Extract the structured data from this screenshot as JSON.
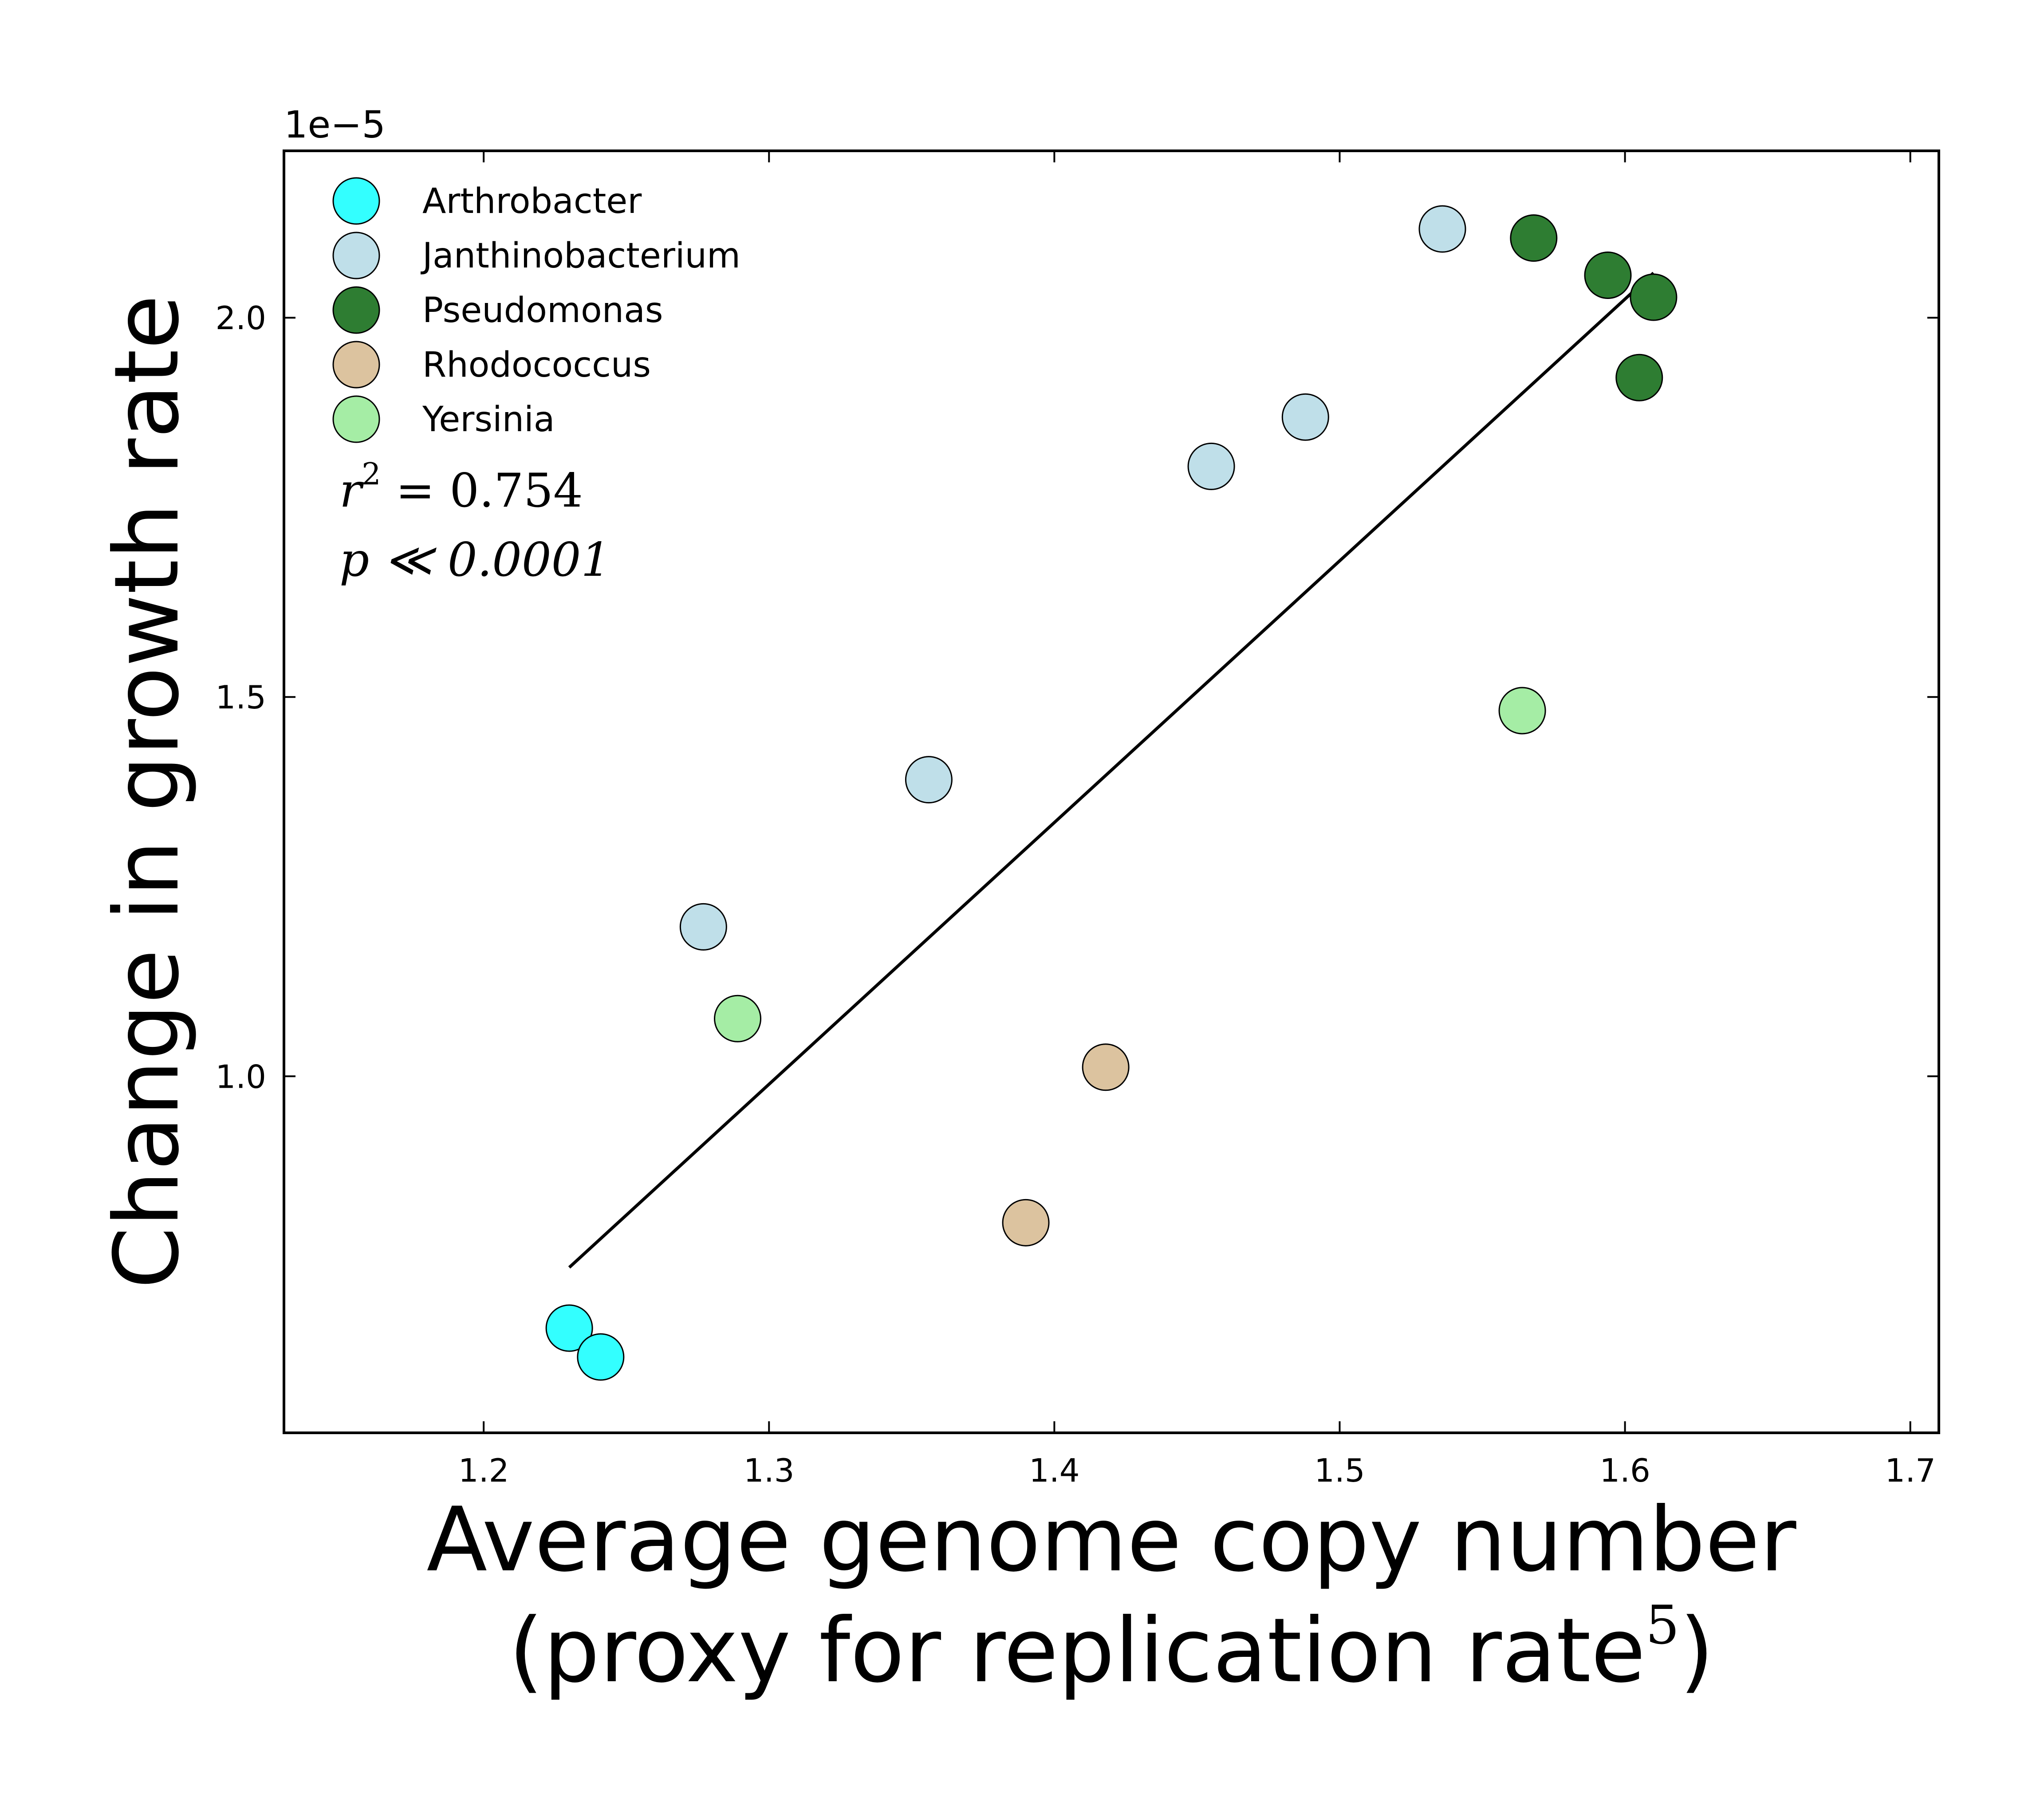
{
  "chart_data": {
    "type": "scatter",
    "xlabel_line1": "Average genome copy number",
    "xlabel_line2_prefix": "(proxy for replication rate",
    "xlabel_line2_sup": "5",
    "xlabel_line2_suffix": ")",
    "ylabel": "Change in growth rate",
    "y_offset_label": "1e−5",
    "xlim": [
      1.13,
      1.71
    ],
    "ylim": [
      0.53,
      2.22
    ],
    "x_ticks": [
      1.2,
      1.3,
      1.4,
      1.5,
      1.6,
      1.7
    ],
    "x_tick_labels": [
      "1.2",
      "1.3",
      "1.4",
      "1.5",
      "1.6",
      "1.7"
    ],
    "y_ticks": [
      1.0,
      1.5,
      2.0
    ],
    "y_tick_labels": [
      "1.0",
      "1.5",
      "2.0"
    ],
    "legend_position": "top-left",
    "series": [
      {
        "name": "Arthrobacter",
        "color": "#33ffff",
        "points": [
          [
            1.23,
            0.668
          ],
          [
            1.241,
            0.63
          ]
        ]
      },
      {
        "name": "Janthinobacterium",
        "color": "#bfdfe9",
        "points": [
          [
            1.277,
            1.197
          ],
          [
            1.356,
            1.391
          ],
          [
            1.455,
            1.804
          ],
          [
            1.488,
            1.869
          ],
          [
            1.536,
            2.117
          ]
        ]
      },
      {
        "name": "Pseudomonas",
        "color": "#2e7d32",
        "points": [
          [
            1.568,
            2.105
          ],
          [
            1.594,
            2.056
          ],
          [
            1.605,
            1.921
          ],
          [
            1.61,
            2.027
          ]
        ]
      },
      {
        "name": "Rhodococcus",
        "color": "#dcc39f",
        "points": [
          [
            1.39,
            0.807
          ],
          [
            1.418,
            1.012
          ]
        ]
      },
      {
        "name": "Yersinia",
        "color": "#a5eda5",
        "points": [
          [
            1.289,
            1.076
          ],
          [
            1.564,
            1.482
          ]
        ]
      }
    ],
    "fit_line": {
      "x": [
        1.23,
        1.61
      ],
      "y": [
        0.748,
        2.059
      ]
    },
    "annotation_r2": {
      "symbol": "r",
      "sup": "2",
      "rest": " = 0.754"
    },
    "annotation_p": "p ≪ 0.0001"
  }
}
